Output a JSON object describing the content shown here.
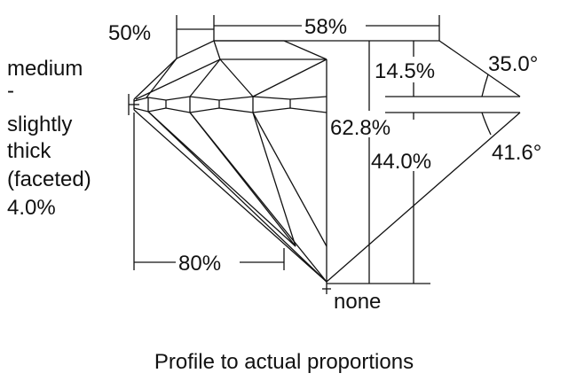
{
  "labels": {
    "crown_height_pct": "50%",
    "table_pct": "58%",
    "girdle_line1": "medium",
    "girdle_line2": "-",
    "girdle_line3": "slightly",
    "girdle_line4": "thick",
    "girdle_line5": "(faceted)",
    "girdle_line6": "4.0%",
    "crown_depth_pct": "14.5%",
    "crown_angle": "35.0°",
    "total_depth_pct": "62.8%",
    "pavilion_depth_pct": "44.0%",
    "pavilion_angle": "41.6°",
    "lower_half_pct": "80%",
    "culet": "none"
  },
  "caption": "Profile to actual proportions"
}
